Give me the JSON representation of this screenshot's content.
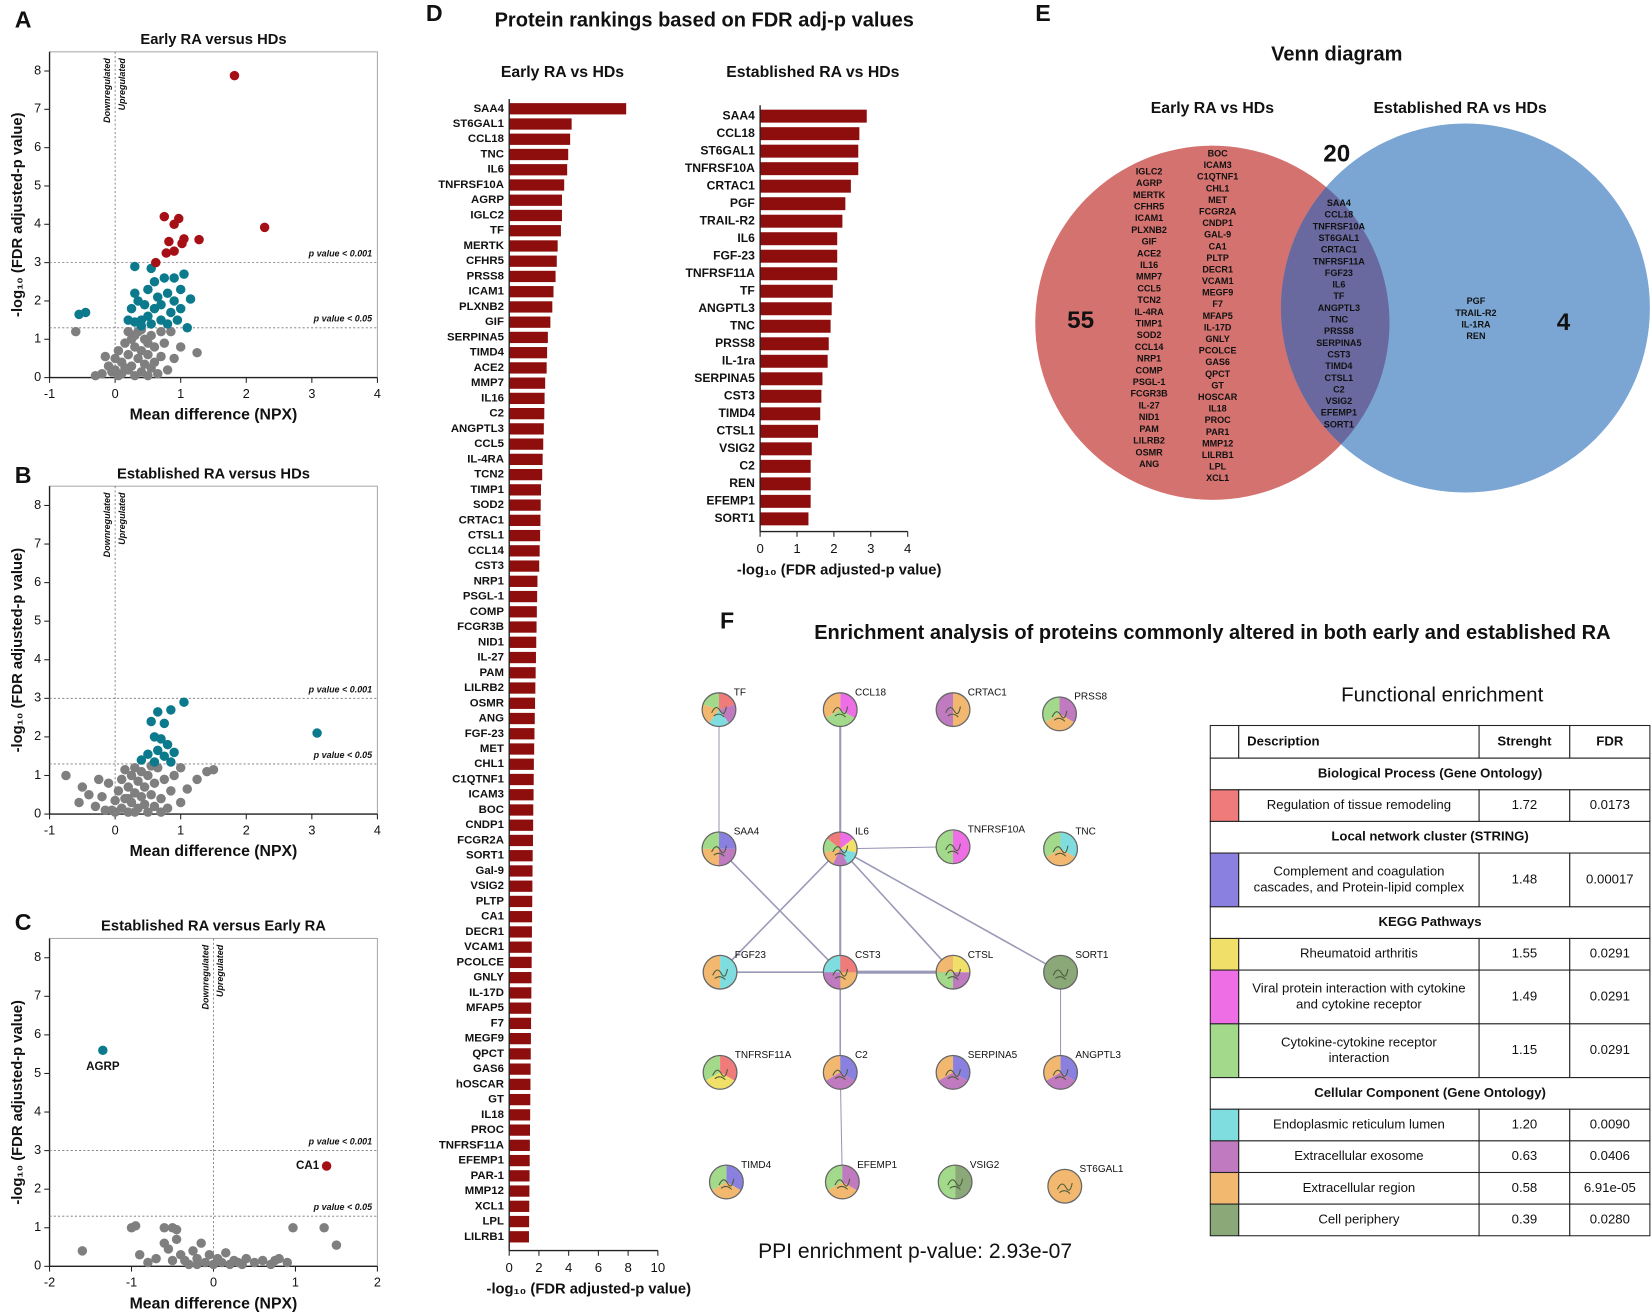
{
  "panels": [
    "A",
    "B",
    "C",
    "D",
    "E",
    "F"
  ],
  "panel_d_title": "Protein rankings based on FDR adj-p values",
  "panel_f_title": "Enrichment analysis of proteins commonly altered in both early and established RA",
  "chart_data": [
    {
      "type": "scatter",
      "title": "Early RA versus HDs",
      "xlabel": "Mean difference (NPX)",
      "ylabel": "-log₁₀ (FDR adjusted-p value)",
      "xlim": [
        -1,
        4
      ],
      "ylim": [
        0,
        8.5
      ],
      "xticks": [
        -1,
        0,
        1,
        2,
        3,
        4
      ],
      "yticks": [
        0,
        1,
        2,
        3,
        4,
        5,
        6,
        7,
        8
      ],
      "vline": 0,
      "annotations": [
        "Downregulated",
        "Upregulated"
      ],
      "thresholds": [
        {
          "value": 3,
          "label": "p value < 0.001"
        },
        {
          "value": 1.3,
          "label": "p value < 0.05"
        }
      ],
      "series": [
        {
          "color": "#7f7f7f",
          "x": [
            -0.6,
            -0.2,
            -0.3,
            -0.1,
            0,
            0,
            0.05,
            0.1,
            0.1,
            0.15,
            0.2,
            0.2,
            0.25,
            0.25,
            0.3,
            0.3,
            0.35,
            0.35,
            0.4,
            0.4,
            0.45,
            0.45,
            0.5,
            0.5,
            0.55,
            0.55,
            0.6,
            0.6,
            0.65,
            0.7,
            0.75,
            0.8,
            0.85,
            0.9,
            1.0,
            1.25,
            -0.15,
            0.15,
            0.3,
            0.05,
            -0.05,
            0.5,
            0.2,
            0.7,
            0.4
          ],
          "y": [
            1.2,
            0.1,
            0.05,
            0.3,
            0.2,
            0.5,
            0.7,
            0.1,
            0.4,
            0.9,
            0.2,
            0.6,
            1.0,
            0.3,
            0.05,
            0.8,
            1.2,
            0.5,
            0.15,
            0.7,
            1.0,
            0.35,
            0.05,
            0.6,
            1.1,
            0.25,
            0.8,
            0.4,
            0.1,
            0.55,
            0.9,
            0.2,
            1.2,
            0.5,
            0.8,
            0.65,
            0.55,
            0.25,
            1.1,
            0.05,
            0.15,
            0.9,
            1.2,
            1.2,
            1.25
          ]
        },
        {
          "color": "#0b7a8c",
          "x": [
            -0.55,
            -0.45,
            0.3,
            0.25,
            0.3,
            0.35,
            0.4,
            0.45,
            0.5,
            0.5,
            0.55,
            0.6,
            0.6,
            0.65,
            0.7,
            0.7,
            0.75,
            0.8,
            0.8,
            0.85,
            0.9,
            0.9,
            0.95,
            1.0,
            1.0,
            1.05,
            1.1,
            1.15,
            0.3,
            0.4,
            0.55,
            0.2
          ],
          "y": [
            1.65,
            1.7,
            1.45,
            1.8,
            2.2,
            2.0,
            1.5,
            1.9,
            1.6,
            2.3,
            1.4,
            1.8,
            2.5,
            2.1,
            1.5,
            1.9,
            2.6,
            1.4,
            2.2,
            1.7,
            2.0,
            2.6,
            1.5,
            1.8,
            2.3,
            2.7,
            1.3,
            2.05,
            2.9,
            1.35,
            2.85,
            1.5
          ]
        },
        {
          "color": "#a50f15",
          "x": [
            1.82,
            2.28,
            0.75,
            0.97,
            0.9,
            1.28,
            1.05,
            0.82,
            0.78,
            0.9,
            0.62,
            1.02
          ],
          "y": [
            7.88,
            3.92,
            4.2,
            4.15,
            4.0,
            3.6,
            3.62,
            3.55,
            3.25,
            3.3,
            3.0,
            3.5
          ]
        }
      ]
    },
    {
      "type": "scatter",
      "title": "Established RA versus HDs",
      "xlabel": "Mean difference (NPX)",
      "ylabel": "-log₁₀ (FDR adjusted-p value)",
      "xlim": [
        -1,
        4
      ],
      "ylim": [
        0,
        8.5
      ],
      "xticks": [
        -1,
        0,
        1,
        2,
        3,
        4
      ],
      "yticks": [
        0,
        1,
        2,
        3,
        4,
        5,
        6,
        7,
        8
      ],
      "vline": 0,
      "annotations": [
        "Downregulated",
        "Upregulated"
      ],
      "thresholds": [
        {
          "value": 3,
          "label": "p value < 0.001"
        },
        {
          "value": 1.3,
          "label": "p value < 0.05"
        }
      ],
      "series": [
        {
          "color": "#7f7f7f",
          "x": [
            -0.75,
            -0.5,
            -0.55,
            -0.4,
            -0.3,
            -0.2,
            -0.15,
            -0.1,
            0,
            0,
            0.05,
            0.1,
            0.1,
            0.15,
            0.2,
            0.2,
            0.25,
            0.25,
            0.3,
            0.3,
            0.35,
            0.35,
            0.4,
            0.4,
            0.45,
            0.45,
            0.5,
            0.5,
            0.55,
            0.6,
            0.6,
            0.65,
            0.7,
            0.75,
            0.8,
            0.85,
            0.9,
            1.0,
            1.1,
            1.25,
            1.4,
            1.5,
            -0.25,
            0.15,
            0.55,
            1.0,
            -0.05,
            0.3,
            0.7,
            0.2
          ],
          "y": [
            1.0,
            0.7,
            0.3,
            0.5,
            0.2,
            0.45,
            0.1,
            0.8,
            0.05,
            0.35,
            0.6,
            0.15,
            0.9,
            0.4,
            0.05,
            0.7,
            1.0,
            0.3,
            0.55,
            1.2,
            0.15,
            0.85,
            0.45,
            1.1,
            0.25,
            0.7,
            0.05,
            1.0,
            0.5,
            0.8,
            0.2,
            1.2,
            0.4,
            0.9,
            0.15,
            0.6,
            1.0,
            0.3,
            0.65,
            0.9,
            1.1,
            1.15,
            0.9,
            1.15,
            1.25,
            1.2,
            0.1,
            0.05,
            0.05,
            0.4
          ]
        },
        {
          "color": "#0b7a8c",
          "x": [
            3.08,
            1.05,
            0.85,
            0.65,
            0.55,
            0.75,
            0.6,
            0.7,
            0.8,
            0.65,
            0.5,
            0.75,
            0.6,
            0.85,
            0.9,
            0.4
          ],
          "y": [
            2.1,
            2.9,
            2.7,
            2.65,
            2.4,
            2.35,
            2.0,
            1.95,
            1.8,
            1.65,
            1.55,
            1.5,
            1.35,
            1.35,
            1.6,
            1.4
          ]
        }
      ]
    },
    {
      "type": "scatter",
      "title": "Established RA versus Early RA",
      "xlabel": "Mean difference (NPX)",
      "ylabel": "-log₁₀ (FDR adjusted-p value)",
      "xlim": [
        -2,
        2
      ],
      "ylim": [
        0,
        8.5
      ],
      "xticks": [
        -2,
        -1,
        0,
        1,
        2
      ],
      "yticks": [
        0,
        1,
        2,
        3,
        4,
        5,
        6,
        7,
        8
      ],
      "vline": 0,
      "annotations": [
        "Downregulated",
        "Upregulated"
      ],
      "thresholds": [
        {
          "value": 3,
          "label": "p value < 0.001"
        },
        {
          "value": 1.3,
          "label": "p value < 0.05"
        }
      ],
      "series": [
        {
          "color": "#7f7f7f",
          "x": [
            -1.6,
            -1.0,
            -0.95,
            -0.6,
            -0.5,
            -0.45,
            -0.55,
            -0.4,
            -0.35,
            -0.3,
            -0.25,
            -0.2,
            -0.15,
            -0.1,
            -0.05,
            0,
            0.05,
            0.1,
            0.15,
            0.2,
            0.25,
            0.3,
            0.4,
            0.5,
            0.6,
            0.7,
            0.8,
            0.9,
            -0.7,
            -0.8,
            -0.9,
            -0.6,
            -0.45,
            0.97,
            1.35,
            1.5,
            0.75,
            -0.2,
            0.35,
            -0.5
          ],
          "y": [
            0.4,
            1.0,
            1.05,
            1.0,
            1.0,
            0.7,
            0.45,
            0.3,
            0.15,
            0.05,
            0.4,
            0.2,
            0.6,
            0.1,
            0.3,
            0.05,
            0.2,
            0.1,
            0.35,
            0.05,
            0.15,
            0.1,
            0.2,
            0.1,
            0.15,
            0.05,
            0.2,
            0.1,
            0.2,
            0.1,
            0.3,
            0.6,
            0.95,
            1.0,
            1.0,
            0.55,
            0.15,
            0.05,
            0.05,
            0.15
          ]
        },
        {
          "color": "#0b7a8c",
          "x": [
            -1.35
          ],
          "y": [
            5.6
          ],
          "labels": [
            "AGRP"
          ]
        },
        {
          "color": "#a50f15",
          "x": [
            1.38
          ],
          "y": [
            2.6
          ],
          "labels": [
            "CA1"
          ]
        }
      ]
    },
    {
      "type": "bar",
      "title": "Early RA vs HDs",
      "xlabel": "-log₁₀ (FDR adjusted-p value)",
      "color": "#8e0e0e",
      "xlim": [
        0,
        10
      ],
      "xticks": [
        0,
        2,
        4,
        6,
        8,
        10
      ],
      "categories": [
        "SAA4",
        "ST6GAL1",
        "CCL18",
        "TNC",
        "IL6",
        "TNFRSF10A",
        "AGRP",
        "IGLC2",
        "TF",
        "MERTK",
        "CFHR5",
        "PRSS8",
        "ICAM1",
        "PLXNB2",
        "GIF",
        "SERPINA5",
        "TIMD4",
        "ACE2",
        "MMP7",
        "IL16",
        "C2",
        "ANGPTL3",
        "CCL5",
        "IL-4RA",
        "TCN2",
        "TIMP1",
        "SOD2",
        "CRTAC1",
        "CTSL1",
        "CCL14",
        "CST3",
        "NRP1",
        "PSGL-1",
        "COMP",
        "FCGR3B",
        "NID1",
        "IL-27",
        "PAM",
        "LILRB2",
        "OSMR",
        "ANG",
        "FGF-23",
        "MET",
        "CHL1",
        "C1QTNF1",
        "ICAM3",
        "BOC",
        "CNDP1",
        "FCGR2A",
        "SORT1",
        "Gal-9",
        "VSIG2",
        "PLTP",
        "CA1",
        "DECR1",
        "VCAM1",
        "PCOLCE",
        "GNLY",
        "IL-17D",
        "MFAP5",
        "F7",
        "MEGF9",
        "QPCT",
        "GAS6",
        "hOSCAR",
        "GT",
        "IL18",
        "PROC",
        "TNFRSF11A",
        "EFEMP1",
        "PAR-1",
        "MMP12",
        "XCL1",
        "LPL",
        "LILRB1"
      ],
      "values": [
        7.87,
        4.2,
        4.1,
        3.97,
        3.9,
        3.7,
        3.55,
        3.55,
        3.48,
        3.26,
        3.2,
        3.12,
        2.98,
        2.9,
        2.77,
        2.6,
        2.55,
        2.52,
        2.42,
        2.38,
        2.36,
        2.33,
        2.29,
        2.25,
        2.22,
        2.14,
        2.12,
        2.1,
        2.08,
        2.05,
        2.02,
        1.9,
        1.88,
        1.86,
        1.84,
        1.82,
        1.8,
        1.78,
        1.76,
        1.74,
        1.72,
        1.7,
        1.68,
        1.66,
        1.65,
        1.64,
        1.62,
        1.61,
        1.6,
        1.58,
        1.57,
        1.56,
        1.55,
        1.54,
        1.53,
        1.52,
        1.51,
        1.5,
        1.49,
        1.48,
        1.47,
        1.46,
        1.45,
        1.44,
        1.43,
        1.42,
        1.41,
        1.4,
        1.39,
        1.38,
        1.37,
        1.36,
        1.35,
        1.34,
        1.33
      ]
    },
    {
      "type": "bar",
      "title": "Established RA vs HDs",
      "xlabel": "-log₁₀ (FDR adjusted-p value)",
      "color": "#8e0e0e",
      "xlim": [
        0,
        4
      ],
      "xticks": [
        0,
        1,
        2,
        3,
        4
      ],
      "categories": [
        "SAA4",
        "CCL18",
        "ST6GAL1",
        "TNFRSF10A",
        "CRTAC1",
        "PGF",
        "TRAIL-R2",
        "IL6",
        "FGF-23",
        "TNFRSF11A",
        "TF",
        "ANGPTL3",
        "TNC",
        "PRSS8",
        "IL-1ra",
        "SERPINA5",
        "CST3",
        "TIMD4",
        "CTSL1",
        "VSIG2",
        "C2",
        "REN",
        "EFEMP1",
        "SORT1"
      ],
      "values": [
        2.89,
        2.69,
        2.66,
        2.66,
        2.46,
        2.31,
        2.23,
        2.09,
        2.09,
        2.09,
        1.97,
        1.94,
        1.91,
        1.86,
        1.83,
        1.69,
        1.66,
        1.63,
        1.57,
        1.4,
        1.37,
        1.37,
        1.37,
        1.31
      ]
    }
  ],
  "venn": {
    "title": "Venn diagram",
    "sets": [
      "Early RA vs HDs",
      "Established RA vs HDs"
    ],
    "counts": {
      "early_only": "55",
      "shared": "20",
      "established_only": "4"
    },
    "early_only": [
      [
        "IGLC2",
        "AGRP",
        "MERTK",
        "CFHR5",
        "ICAM1",
        "PLXNB2",
        "GIF",
        "ACE2",
        "IL16",
        "MMP7",
        "CCL5",
        "TCN2",
        "IL-4RA",
        "TIMP1",
        "SOD2",
        "CCL14",
        "NRP1",
        "COMP",
        "PSGL-1",
        "FCGR3B",
        "IL-27",
        "NID1",
        "PAM",
        "LILRB2",
        "OSMR",
        "ANG"
      ],
      [
        "BOC",
        "ICAM3",
        "C1QTNF1",
        "CHL1",
        "MET",
        "FCGR2A",
        "CNDP1",
        "GAL-9",
        "CA1",
        "PLTP",
        "DECR1",
        "VCAM1",
        "MEGF9",
        "F7",
        "MFAP5",
        "IL-17D",
        "GNLY",
        "PCOLCE",
        "GAS6",
        "QPCT",
        "GT",
        "HOSCAR",
        "IL18",
        "PROC",
        "PAR1",
        "MMP12",
        "LILRB1",
        "LPL",
        "XCL1"
      ]
    ],
    "shared": [
      "SAA4",
      "CCL18",
      "TNFRSF10A",
      "ST6GAL1",
      "CRTAC1",
      "TNFRSF11A",
      "FGF23",
      "IL6",
      "TF",
      "ANGPTL3",
      "TNC",
      "PRSS8",
      "SERPINA5",
      "CST3",
      "TIMD4",
      "CTSL1",
      "C2",
      "VSIG2",
      "EFEMP1",
      "SORT1"
    ],
    "established_only": [
      "PGF",
      "TRAIL-R2",
      "IL-1RA",
      "REN"
    ]
  },
  "network": {
    "nodes": [
      "TF",
      "CCL18",
      "CRTAC1",
      "PRSS8",
      "SAA4",
      "IL6",
      "TNFRSF10A",
      "TNC",
      "FGF23",
      "CST3",
      "CTSL",
      "SORT1",
      "TNFRSF11A",
      "C2",
      "SERPINA5",
      "ANGPTL3",
      "TIMD4",
      "EFEMP1",
      "VSIG2",
      "ST6GAL1"
    ],
    "ppi_text": "PPI enrichment p-value: 2.93e-07"
  },
  "table": {
    "title": "Functional enrichment",
    "header": [
      "Description",
      "Strenght",
      "FDR"
    ],
    "sections": [
      {
        "title": "Biological Process (Gene Ontology)",
        "rows": [
          {
            "color": "#ef7b7b",
            "description": [
              "Regulation of tissue remodeling"
            ],
            "strength": "1.72",
            "fdr": "0.0173"
          }
        ]
      },
      {
        "title": "Local network cluster (STRING)",
        "rows": [
          {
            "color": "#8a80e0",
            "description": [
              "Complement and coagulation",
              "cascades, and Protein-lipid complex"
            ],
            "strength": "1.48",
            "fdr": "0.00017"
          }
        ]
      },
      {
        "title": "KEGG Pathways",
        "rows": [
          {
            "color": "#f0e06a",
            "description": [
              "Rheumatoid arthritis"
            ],
            "strength": "1.55",
            "fdr": "0.0291"
          },
          {
            "color": "#ee6ee6",
            "description": [
              "Viral protein interaction with cytokine",
              "and cytokine receptor"
            ],
            "strength": "1.49",
            "fdr": "0.0291"
          },
          {
            "color": "#a3d98a",
            "description": [
              "Cytokine-cytokine receptor",
              "interaction"
            ],
            "strength": "1.15",
            "fdr": "0.0291"
          }
        ]
      },
      {
        "title": "Cellular Component (Gene Ontology)",
        "rows": [
          {
            "color": "#7fdde0",
            "description": [
              "Endoplasmic reticulum lumen"
            ],
            "strength": "1.20",
            "fdr": "0.0090"
          },
          {
            "color": "#c07ac0",
            "description": [
              "Extracellular exosome"
            ],
            "strength": "0.63",
            "fdr": "0.0406"
          },
          {
            "color": "#f2b870",
            "description": [
              "Extracellular region"
            ],
            "strength": "0.58",
            "fdr": "6.91e-05"
          },
          {
            "color": "#8aa878",
            "description": [
              "Cell periphery"
            ],
            "strength": "0.39",
            "fdr": "0.0280"
          }
        ]
      }
    ]
  }
}
